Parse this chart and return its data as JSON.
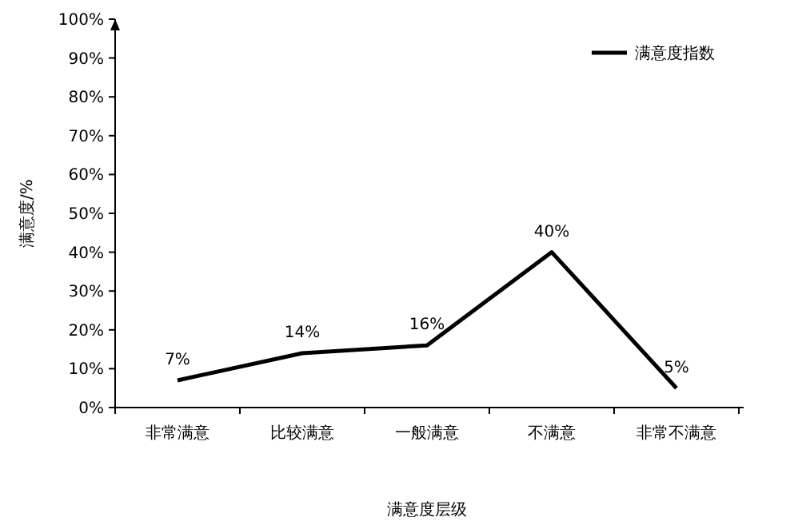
{
  "chart_data": {
    "type": "line",
    "xlabel": "满意度层级",
    "ylabel": "满意度/%",
    "categories": [
      "非常满意",
      "比较满意",
      "一般满意",
      "不满意",
      "非常不满意"
    ],
    "series": [
      {
        "name": "满意度指数",
        "color": "#000000",
        "values": [
          7,
          14,
          16,
          40,
          5
        ],
        "value_labels": [
          "7%",
          "14%",
          "16%",
          "40%",
          "5%"
        ]
      }
    ],
    "ylim": [
      0,
      100
    ],
    "yticks": [
      {
        "value": 0,
        "label": "0%"
      },
      {
        "value": 10,
        "label": "10%"
      },
      {
        "value": 20,
        "label": "20%"
      },
      {
        "value": 30,
        "label": "30%"
      },
      {
        "value": 40,
        "label": "40%"
      },
      {
        "value": 50,
        "label": "50%"
      },
      {
        "value": 60,
        "label": "60%"
      },
      {
        "value": 70,
        "label": "70%"
      },
      {
        "value": 80,
        "label": "80%"
      },
      {
        "value": 90,
        "label": "90%"
      },
      {
        "value": 100,
        "label": "100%"
      }
    ],
    "legend": "top right",
    "grid": false,
    "marker": "none",
    "line_style": "solid"
  }
}
